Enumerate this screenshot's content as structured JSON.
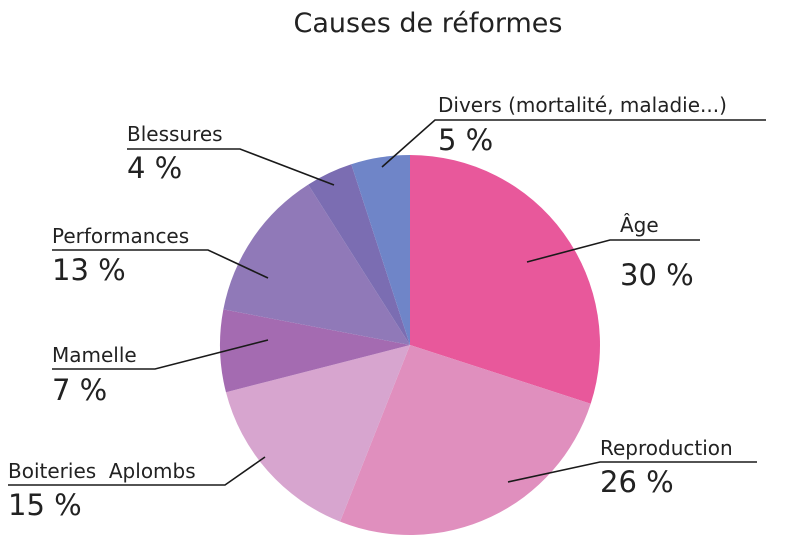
{
  "chart_data": {
    "type": "pie",
    "title": "Causes de réformes",
    "slices": [
      {
        "label": "Âge",
        "value": 30,
        "value_label": "30 %",
        "color": "#e8589b"
      },
      {
        "label": "Reproduction",
        "value": 26,
        "value_label": "26 %",
        "color": "#e08fbe"
      },
      {
        "label": "Boiteries  Aplombs",
        "value": 15,
        "value_label": "15 %",
        "color": "#d7a5cf"
      },
      {
        "label": "Mamelle",
        "value": 7,
        "value_label": "7 %",
        "color": "#a46bb1"
      },
      {
        "label": "Performances",
        "value": 13,
        "value_label": "13 %",
        "color": "#9079b8"
      },
      {
        "label": "Blessures",
        "value": 4,
        "value_label": "4 %",
        "color": "#7b6db2"
      },
      {
        "label": "Divers (mortalité, maladie...)",
        "value": 5,
        "value_label": "5 %",
        "color": "#6f85c8"
      }
    ]
  }
}
